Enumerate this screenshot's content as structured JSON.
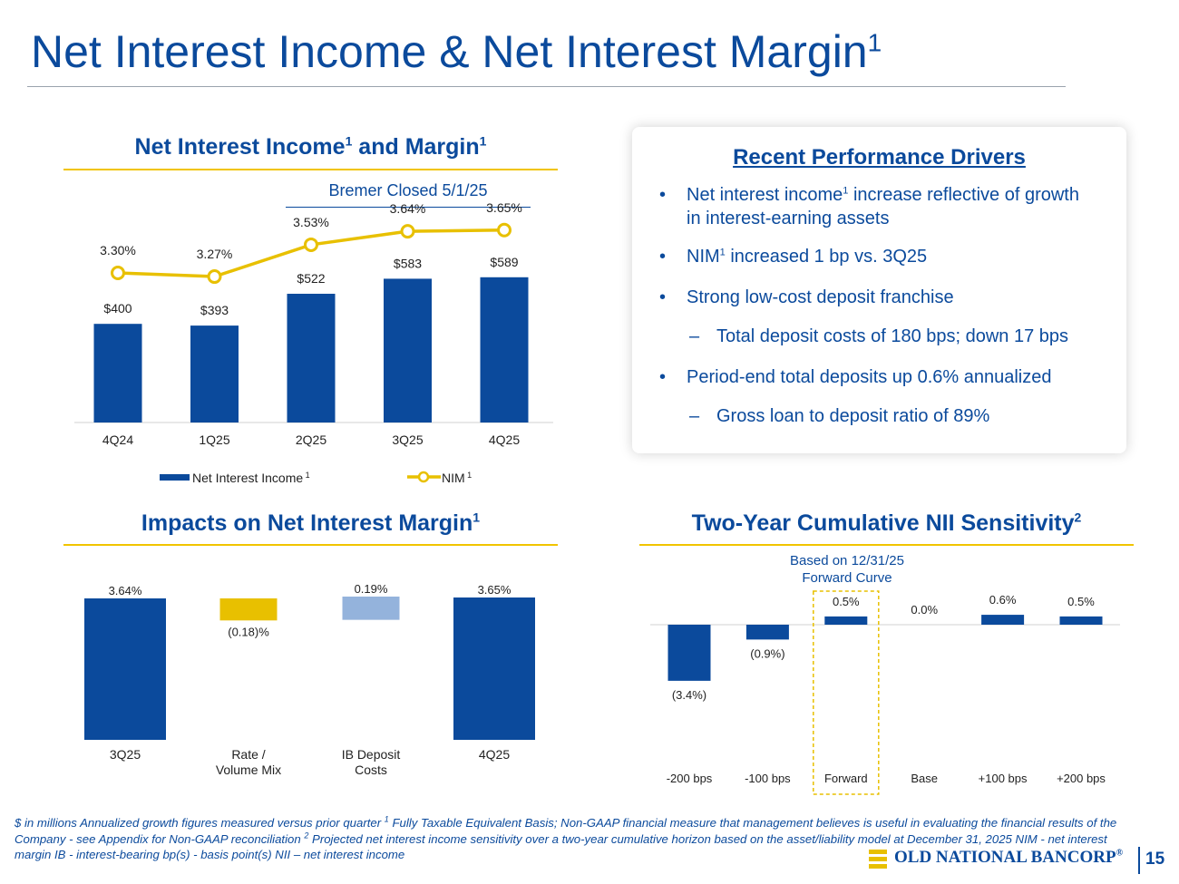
{
  "page": {
    "title": "Net Interest Income & Net Interest Margin",
    "title_sup": "1",
    "page_number": "15"
  },
  "colors": {
    "navy": "#0b4a9c",
    "gold": "#e8c000",
    "light_blue": "#94b3dc",
    "rule_gold": "#f1c400"
  },
  "nii_section": {
    "title": "Net Interest Income",
    "title_sup": "1",
    "title_mid": " and Margin",
    "title_sup2": "1",
    "callout": "Bremer Closed 5/1/25"
  },
  "impacts_section": {
    "title": "Impacts on Net Interest Margin",
    "title_sup": "1"
  },
  "sensitivity_section": {
    "title": "Two-Year Cumulative NII Sensitivity",
    "title_sup": "2",
    "callout_line1": "Based on 12/31/25",
    "callout_line2": "Forward Curve"
  },
  "drivers": {
    "heading": "Recent Performance Drivers",
    "items": [
      {
        "marker": "•",
        "pre": "Net interest income",
        "sup": "1",
        "post": " increase reflective of growth",
        "line2": "in interest-earning assets"
      },
      {
        "marker": "•",
        "pre": "NIM",
        "sup": "1",
        "post": " increased 1 bp vs. 3Q25"
      },
      {
        "marker": "•",
        "text": "Strong low-cost deposit franchise"
      },
      {
        "marker": "–",
        "text": "Total deposit costs of 180 bps; down 17 bps"
      },
      {
        "marker": "•",
        "text": "Period-end total deposits up 0.6% annualized"
      },
      {
        "marker": "–",
        "text": "Gross loan to deposit ratio of 89%"
      }
    ]
  },
  "footnote": {
    "part1": "$ in millions   Annualized growth figures measured versus prior quarter   ",
    "sup1": "1",
    "part2": " Fully Taxable Equivalent Basis; Non-GAAP financial measure that management believes is useful in evaluating the financial results of the Company - see Appendix for Non-GAAP reconciliation   ",
    "sup2": "2",
    "part3": " Projected net interest income sensitivity over a two-year cumulative horizon based on the asset/liability model at December 31, 2025   NIM - net interest margin   IB - interest-bearing   bp(s) - basis point(s)   NII – net interest income"
  },
  "logo": {
    "text": "OLD NATIONAL BANCORP",
    "reg": "®"
  },
  "chart_data": [
    {
      "id": "nii_and_margin",
      "type": "bar",
      "categories": [
        "4Q24",
        "1Q25",
        "2Q25",
        "3Q25",
        "4Q25"
      ],
      "series": [
        {
          "name": "Net Interest Income",
          "name_sup": "1",
          "type": "bar",
          "values": [
            400,
            393,
            522,
            583,
            589
          ],
          "labels": [
            "$400",
            "$393",
            "$522",
            "$583",
            "$589"
          ]
        },
        {
          "name": "NIM",
          "name_sup": "1",
          "type": "line",
          "values": [
            3.3,
            3.27,
            3.53,
            3.64,
            3.65
          ],
          "labels": [
            "3.30%",
            "3.27%",
            "3.53%",
            "3.64%",
            "3.65%"
          ]
        }
      ],
      "legend": "bottom",
      "grid": false
    },
    {
      "id": "nim_bridge",
      "type": "bar",
      "categories": [
        "3Q25",
        "Rate / Volume Mix",
        "IB Deposit Costs",
        "4Q25"
      ],
      "category_lines": [
        [
          "3Q25"
        ],
        [
          "Rate /",
          "Volume Mix"
        ],
        [
          "IB Deposit",
          "Costs"
        ],
        [
          "4Q25"
        ]
      ],
      "values": [
        3.64,
        -0.18,
        0.19,
        3.65
      ],
      "labels": [
        "3.64%",
        "(0.18)%",
        "0.19%",
        "3.65%"
      ],
      "kinds": [
        "total",
        "delta",
        "delta",
        "total"
      ],
      "colors": [
        "#0b4a9c",
        "#e8c000",
        "#94b3dc",
        "#0b4a9c"
      ],
      "grid": false
    },
    {
      "id": "nii_sensitivity",
      "type": "bar",
      "categories": [
        "-200 bps",
        "-100 bps",
        "Forward",
        "Base",
        "+100 bps",
        "+200 bps"
      ],
      "values": [
        -3.4,
        -0.9,
        0.5,
        0.0,
        0.6,
        0.5
      ],
      "labels": [
        "(3.4%)",
        "(0.9%)",
        "0.5%",
        "0.0%",
        "0.6%",
        "0.5%"
      ],
      "highlight": "Forward",
      "grid": false
    }
  ]
}
